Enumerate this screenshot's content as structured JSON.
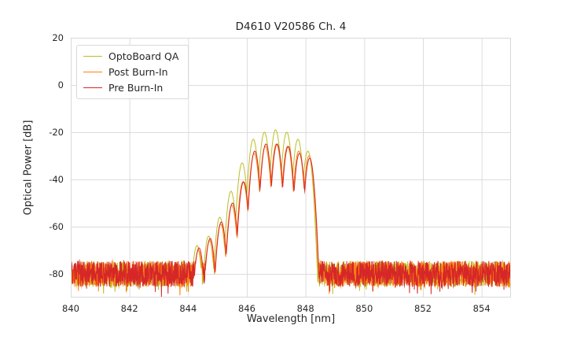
{
  "figure": {
    "background_color": "#ffffff",
    "grid_color": "#dcdcdc",
    "spine_color": "#d9d9d9",
    "text_color": "#262626"
  },
  "chart_data": {
    "type": "line",
    "title": "D4610 V20586 Ch. 4",
    "xlabel": "Wavelength [nm]",
    "ylabel": "Optical Power [dB]",
    "xlim": [
      840,
      855
    ],
    "ylim": [
      -90,
      20
    ],
    "xticks": [
      840,
      842,
      844,
      846,
      848,
      850,
      852,
      854
    ],
    "yticks": [
      20,
      0,
      -20,
      -40,
      -60,
      -80
    ],
    "grid": true,
    "legend_position": "upper-left",
    "x_step_nm": 0.0075,
    "series": [
      {
        "name": "OptoBoard QA",
        "color": "#bcbd22",
        "noise_floor_db": -80,
        "noise_spread_db": 5.5,
        "seed": 11,
        "mode_width_nm": 0.045,
        "modes": [
          [
            844.3,
            -68
          ],
          [
            844.7,
            -64
          ],
          [
            845.08,
            -56
          ],
          [
            845.46,
            -45
          ],
          [
            845.84,
            -33
          ],
          [
            846.22,
            -23
          ],
          [
            846.6,
            -20
          ],
          [
            846.98,
            -19
          ],
          [
            847.36,
            -20
          ],
          [
            847.74,
            -23
          ],
          [
            848.08,
            -28
          ]
        ]
      },
      {
        "name": "Post Burn-In",
        "color": "#ff7f0e",
        "noise_floor_db": -80,
        "noise_spread_db": 5.5,
        "seed": 22,
        "mode_width_nm": 0.045,
        "modes": [
          [
            844.35,
            -70
          ],
          [
            844.73,
            -66
          ],
          [
            845.11,
            -59
          ],
          [
            845.49,
            -51
          ],
          [
            845.87,
            -41
          ],
          [
            846.25,
            -29
          ],
          [
            846.63,
            -26
          ],
          [
            847.01,
            -25
          ],
          [
            847.39,
            -26
          ],
          [
            847.77,
            -28
          ],
          [
            848.12,
            -30
          ]
        ]
      },
      {
        "name": "Pre Burn-In",
        "color": "#d62728",
        "noise_floor_db": -80,
        "noise_spread_db": 5.5,
        "seed": 33,
        "mode_width_nm": 0.045,
        "modes": [
          [
            844.37,
            -69
          ],
          [
            844.75,
            -65
          ],
          [
            845.13,
            -58
          ],
          [
            845.51,
            -50
          ],
          [
            845.89,
            -41
          ],
          [
            846.27,
            -28
          ],
          [
            846.65,
            -25
          ],
          [
            847.03,
            -25
          ],
          [
            847.41,
            -26
          ],
          [
            847.79,
            -29
          ],
          [
            848.14,
            -31
          ]
        ]
      }
    ]
  }
}
